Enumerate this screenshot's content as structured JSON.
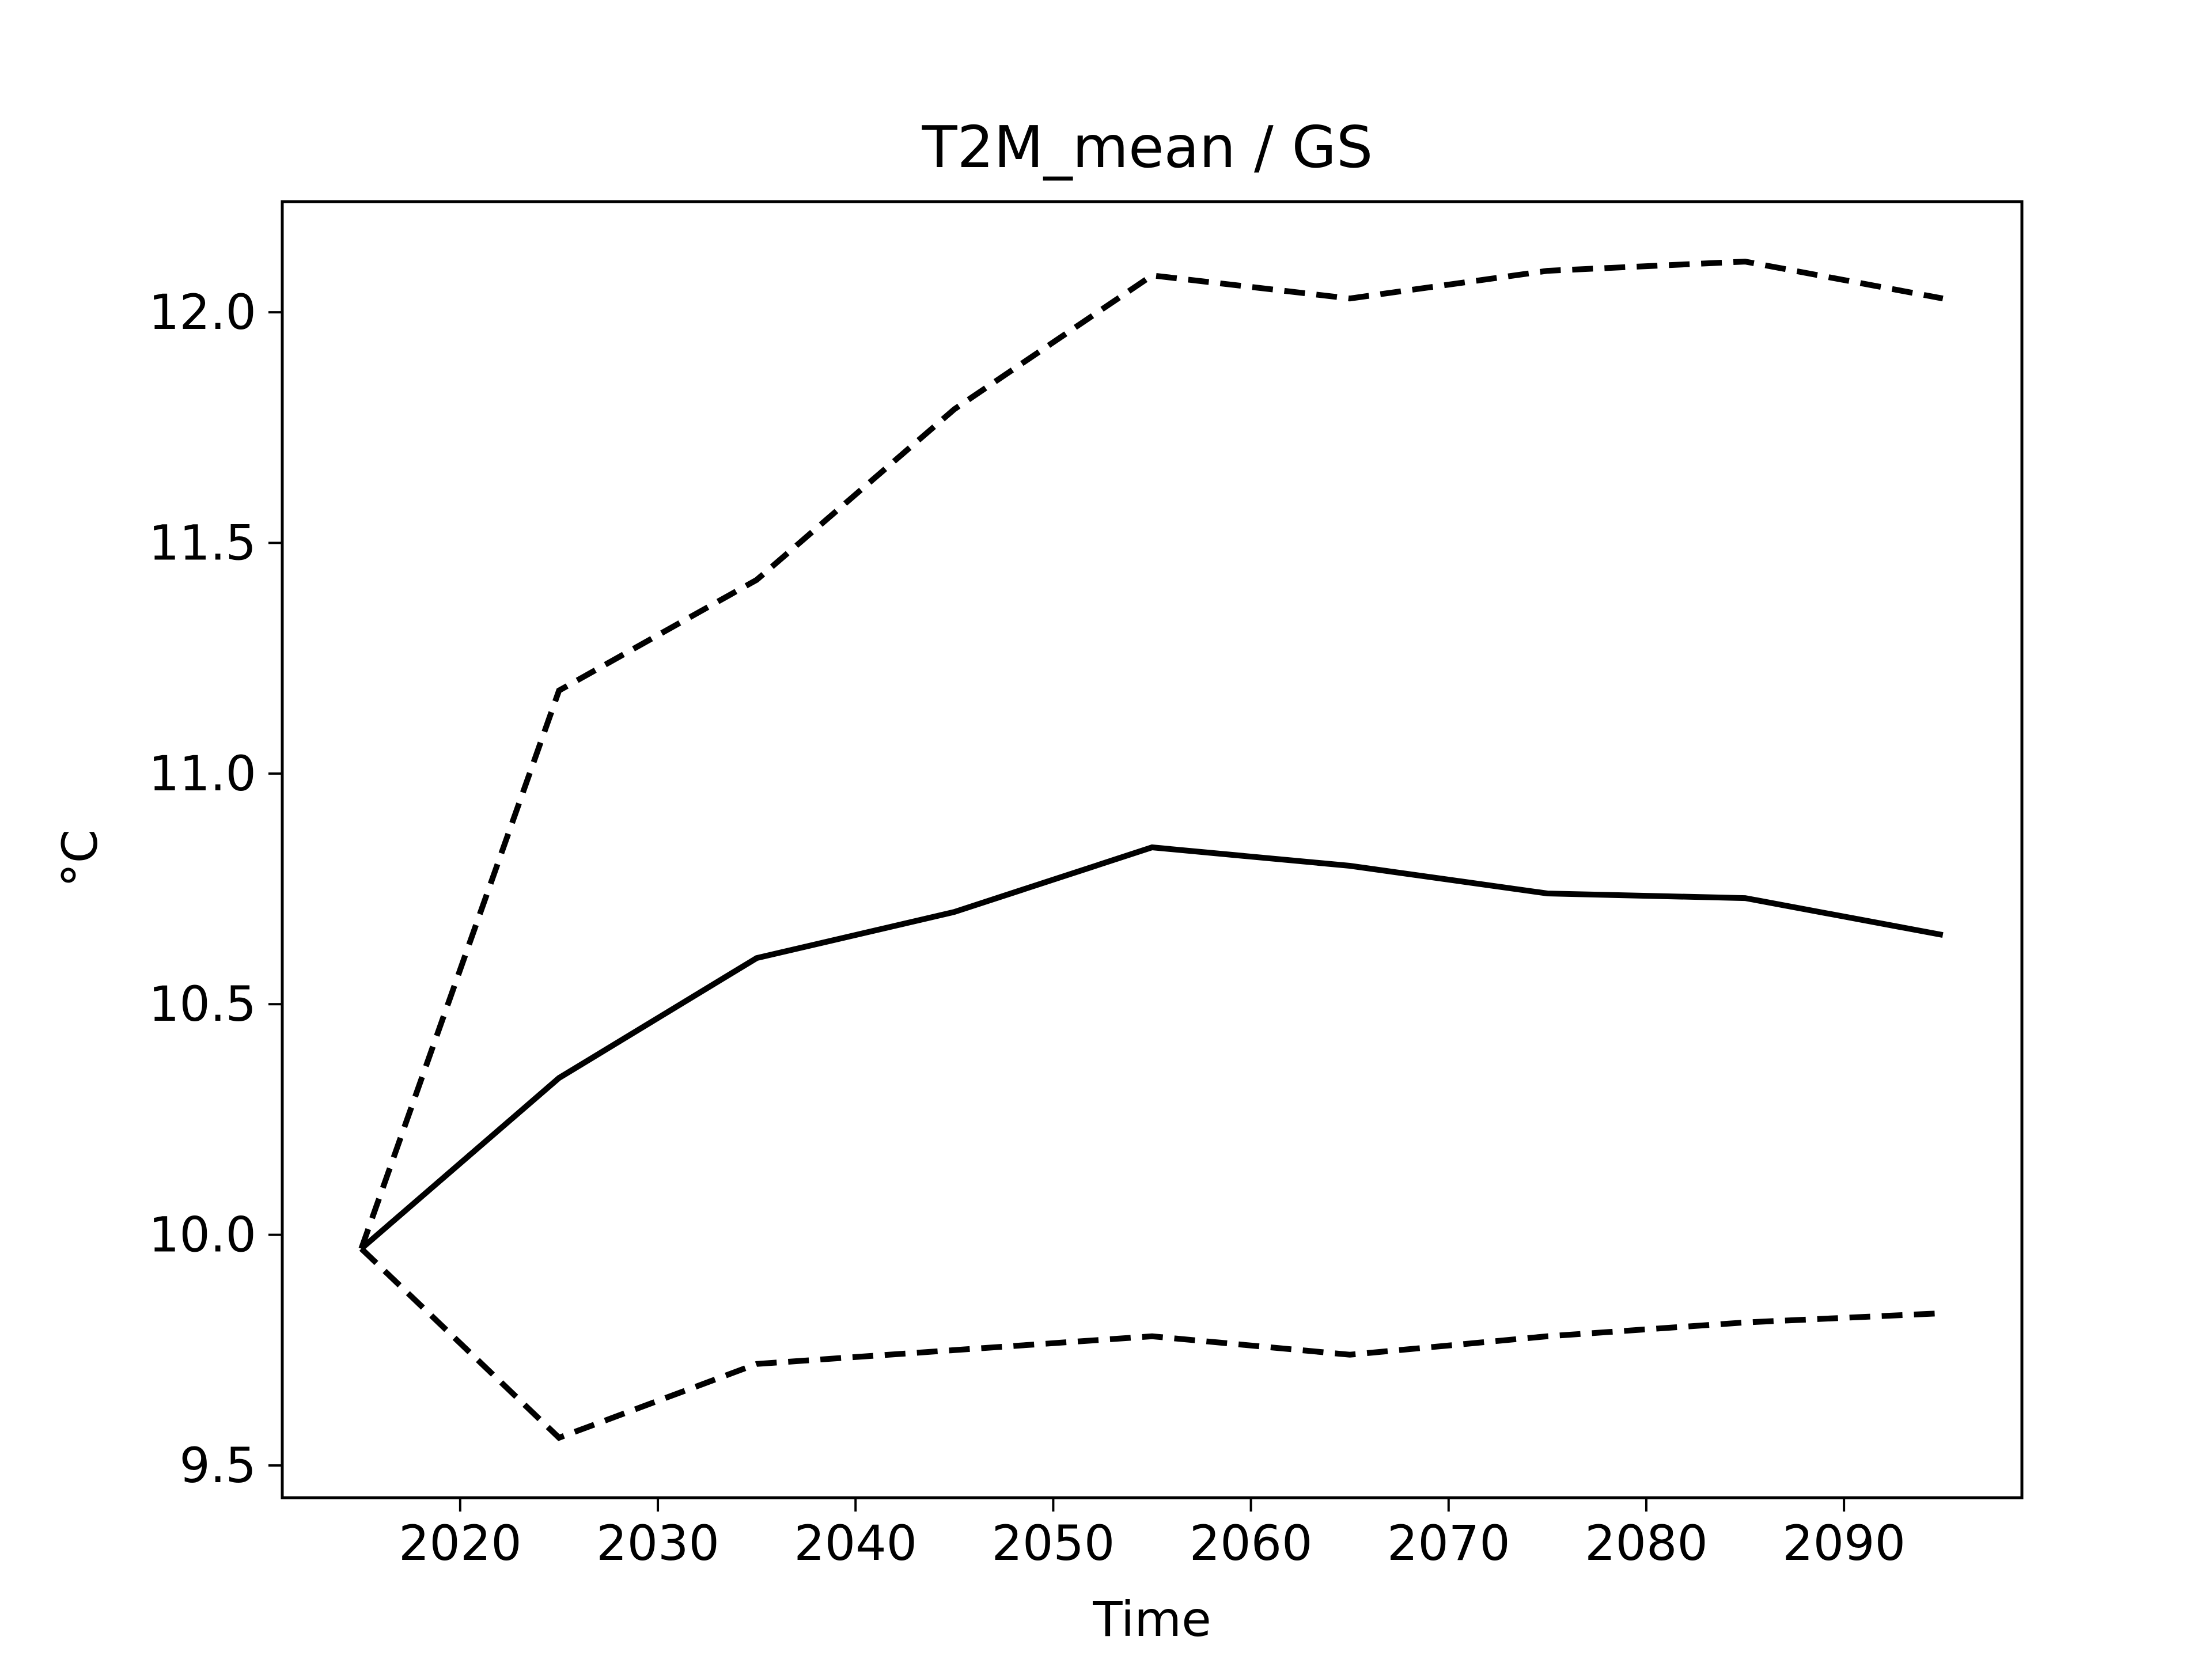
{
  "chart_data": {
    "type": "line",
    "title": "T2M_mean / GS",
    "xlabel": "Time",
    "ylabel": "°C",
    "x": [
      2015,
      2025,
      2035,
      2045,
      2055,
      2065,
      2075,
      2085,
      2095
    ],
    "series": [
      {
        "style": "solid",
        "values": [
          9.97,
          10.34,
          10.6,
          10.7,
          10.84,
          10.8,
          10.74,
          10.73,
          10.65
        ]
      },
      {
        "style": "dashed",
        "values": [
          9.97,
          11.18,
          11.42,
          11.79,
          12.08,
          12.03,
          12.09,
          12.11,
          12.03
        ]
      },
      {
        "style": "dashed",
        "values": [
          9.97,
          9.56,
          9.72,
          9.75,
          9.78,
          9.74,
          9.78,
          9.81,
          9.83
        ]
      }
    ],
    "xlim": [
      2011,
      2099
    ],
    "ylim": [
      9.43,
      12.24
    ],
    "xticks": [
      "2020",
      "2030",
      "2040",
      "2050",
      "2060",
      "2070",
      "2080",
      "2090"
    ],
    "yticks": [
      "9.5",
      "10.0",
      "10.5",
      "11.0",
      "11.5",
      "12.0"
    ],
    "grid": false,
    "colors": {
      "line": "#000000",
      "axes": "#000000",
      "background": "#ffffff"
    }
  }
}
